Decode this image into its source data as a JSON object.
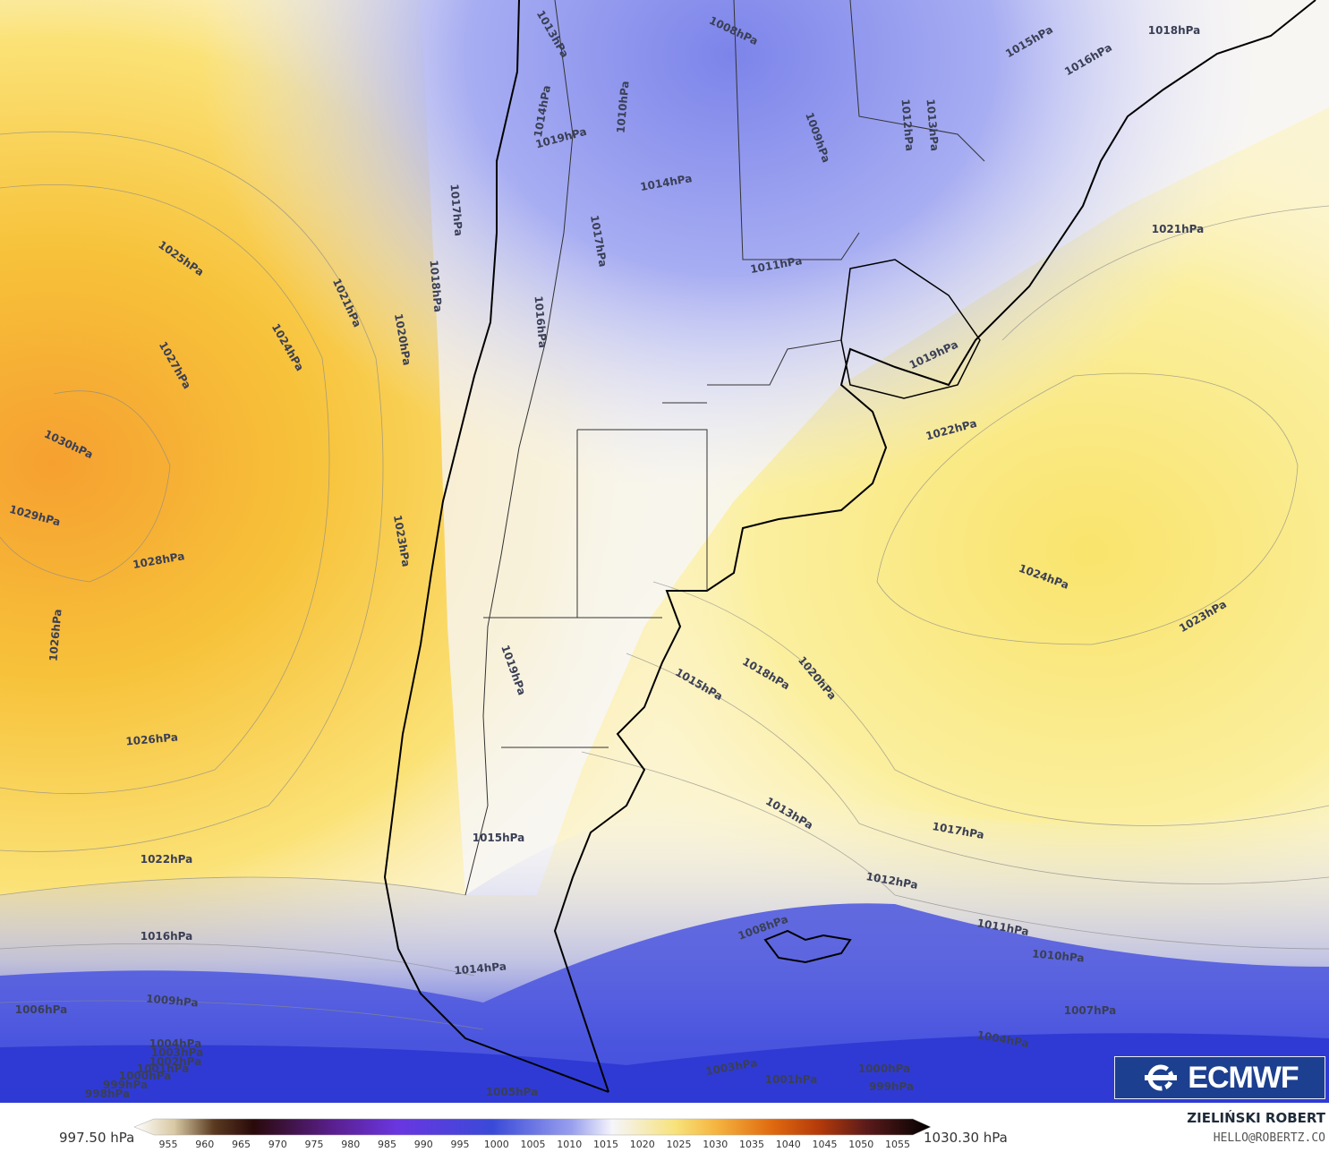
{
  "map": {
    "colors": {
      "high": "#f7a234",
      "mid_high": "#f5d24a",
      "mid": "#fbf3c4",
      "neutral": "#f8f8fc",
      "low_light": "#c5c8f2",
      "low": "#6f79e8",
      "very_low": "#2e3bd6",
      "coast": "#000000"
    },
    "isobar_labels": [
      {
        "text": "1030hPa"
      },
      {
        "text": "1029hPa"
      },
      {
        "text": "1028hPa"
      },
      {
        "text": "1027hPa"
      },
      {
        "text": "1026hPa"
      },
      {
        "text": "1026hPa"
      },
      {
        "text": "1025hPa"
      },
      {
        "text": "1024hPa"
      },
      {
        "text": "1023hPa"
      },
      {
        "text": "1022hPa"
      },
      {
        "text": "1021hPa"
      },
      {
        "text": "1020hPa"
      },
      {
        "text": "1018hPa"
      },
      {
        "text": "1017hPa"
      },
      {
        "text": "1016hPa"
      },
      {
        "text": "1009hPa"
      },
      {
        "text": "1006hPa"
      },
      {
        "text": "1004hPa"
      },
      {
        "text": "1003hPa"
      },
      {
        "text": "1002hPa"
      },
      {
        "text": "1001hPa"
      },
      {
        "text": "1000hPa"
      },
      {
        "text": "999hPa"
      },
      {
        "text": "998hPa"
      },
      {
        "text": "1013hPa"
      },
      {
        "text": "1008hPa"
      },
      {
        "text": "1015hPa"
      },
      {
        "text": "1016hPa"
      },
      {
        "text": "1018hPa"
      },
      {
        "text": "1012hPa"
      },
      {
        "text": "1013hPa"
      },
      {
        "text": "1009hPa"
      },
      {
        "text": "1014hPa"
      },
      {
        "text": "1014hPa"
      },
      {
        "text": "1019hPa"
      },
      {
        "text": "1017hPa"
      },
      {
        "text": "1011hPa"
      },
      {
        "text": "1021hPa"
      },
      {
        "text": "1019hPa"
      },
      {
        "text": "1022hPa"
      },
      {
        "text": "1024hPa"
      },
      {
        "text": "1023hPa"
      },
      {
        "text": "1018hPa"
      },
      {
        "text": "1020hPa"
      },
      {
        "text": "1015hPa"
      },
      {
        "text": "1019hPa"
      },
      {
        "text": "1013hPa"
      },
      {
        "text": "1017hPa"
      },
      {
        "text": "1012hPa"
      },
      {
        "text": "1011hPa"
      },
      {
        "text": "1010hPa"
      },
      {
        "text": "1008hPa"
      },
      {
        "text": "1007hPa"
      },
      {
        "text": "1004hPa"
      },
      {
        "text": "1003hPa"
      },
      {
        "text": "1001hPa"
      },
      {
        "text": "1000hPa"
      },
      {
        "text": "999hPa"
      },
      {
        "text": "1005hPa"
      },
      {
        "text": "1015hPa"
      },
      {
        "text": "1014hPa"
      },
      {
        "text": "1016hPa"
      },
      {
        "text": "1010hPa"
      }
    ]
  },
  "legend": {
    "min_label": "997.50 hPa",
    "max_label": "1030.30 hPa",
    "ticks": [
      "955",
      "960",
      "965",
      "970",
      "975",
      "980",
      "985",
      "990",
      "995",
      "1000",
      "1005",
      "1010",
      "1015",
      "1020",
      "1025",
      "1030",
      "1035",
      "1040",
      "1045",
      "1050",
      "1055"
    ]
  },
  "branding": {
    "logo_text": "ECMWF",
    "author": "ZIELIŃSKI ROBERT",
    "email": "HELLO@ROBERTZ.CO"
  }
}
